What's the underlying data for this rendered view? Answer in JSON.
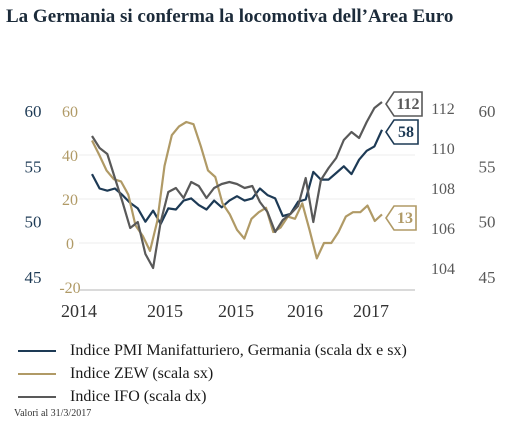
{
  "title": "La Germania si conferma la locomotiva dell’Area Euro",
  "note": "Valori al 31/3/2017",
  "colors": {
    "pmi": "#1d3a55",
    "zew": "#b09a66",
    "ifo": "#595959"
  },
  "chart_data": {
    "type": "line",
    "x_ticks": [
      "2014",
      "2015",
      "2015",
      "2016",
      "2017"
    ],
    "axes": {
      "outer_left": {
        "ticks": [
          "60",
          "55",
          "50",
          "45"
        ],
        "range": [
          45,
          60
        ],
        "color": "#1d3a55"
      },
      "inner_left": {
        "ticks": [
          "60",
          "40",
          "20",
          "0",
          "-20"
        ],
        "range": [
          -20,
          60
        ],
        "color": "#b09a66"
      },
      "inner_right": {
        "ticks": [
          "112",
          "110",
          "108",
          "106",
          "104"
        ],
        "range": [
          103,
          113
        ],
        "color": "#595959"
      },
      "outer_right": {
        "ticks": [
          "60",
          "55",
          "50",
          "45"
        ],
        "range": [
          45,
          60
        ],
        "color": "#595959"
      }
    },
    "series": [
      {
        "name": "Indice PMI Manifatturiero, Germania (scala dx e sx)",
        "key": "pmi",
        "axis": "outer_left",
        "end_label": "58",
        "values": [
          54.3,
          53.0,
          52.8,
          53.0,
          52.4,
          51.7,
          51.2,
          50.0,
          51.0,
          49.8,
          51.2,
          51.1,
          51.9,
          52.1,
          51.5,
          51.1,
          51.9,
          51.3,
          51.9,
          52.3,
          51.9,
          52.1,
          53.0,
          52.4,
          52.1,
          50.5,
          50.7,
          51.8,
          52.0,
          54.5,
          53.8,
          53.8,
          54.4,
          55.0,
          54.3,
          55.6,
          56.4,
          56.8,
          58.3
        ]
      },
      {
        "name": "Indice ZEW (scala sx)",
        "key": "zew",
        "axis": "inner_left",
        "end_label": "13",
        "values": [
          46.6,
          40,
          33,
          29,
          28,
          22,
          8,
          3.2,
          -3.6,
          10,
          35,
          49,
          53,
          55,
          54,
          44,
          33,
          30,
          18,
          13,
          6,
          2,
          11,
          14,
          16,
          5,
          7,
          12,
          11,
          18,
          6,
          -7,
          0,
          0,
          5,
          12,
          14,
          14,
          17,
          10,
          13
        ]
      },
      {
        "name": "Indice IFO (scala dx)",
        "key": "ifo",
        "axis": "inner_right",
        "end_label": "112",
        "values": [
          110.6,
          110.0,
          109.7,
          108.5,
          107.3,
          106.0,
          106.3,
          104.7,
          104.0,
          106.3,
          107.8,
          108.0,
          107.5,
          108.3,
          108.1,
          107.5,
          108.0,
          108.2,
          108.3,
          108.2,
          108.0,
          108.1,
          107.3,
          106.8,
          105.8,
          106.4,
          106.7,
          107.1,
          108.5,
          106.3,
          108.4,
          109.0,
          109.5,
          110.4,
          110.8,
          110.5,
          111.3,
          112.0,
          112.3
        ]
      }
    ]
  }
}
